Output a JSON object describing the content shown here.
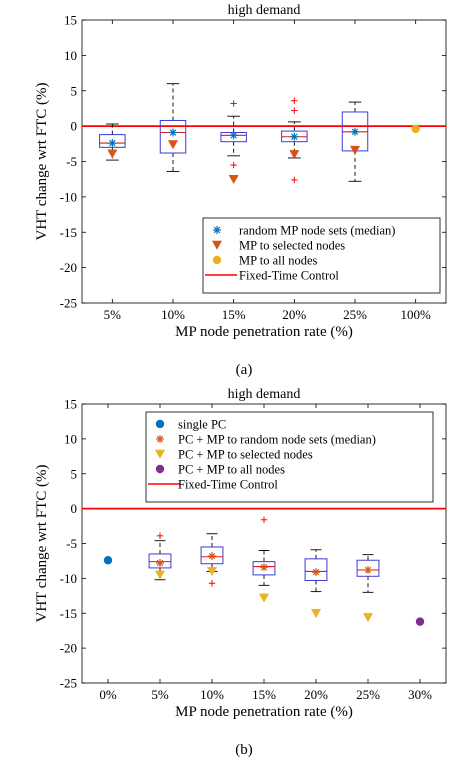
{
  "chart_data": [
    {
      "type": "box",
      "title": "high demand",
      "xlabel": "MP node penetration rate (%)",
      "ylabel": "VHT change wrt FTC (%)",
      "caption": "(a)",
      "ylim": [
        -25,
        15
      ],
      "yticks": [
        15,
        10,
        5,
        0,
        -5,
        -10,
        -15,
        -20,
        -25
      ],
      "categories": [
        "5%",
        "10%",
        "15%",
        "20%",
        "25%",
        "100%"
      ],
      "grid": false,
      "legend_position": "bottom-right",
      "reference_line": {
        "name": "Fixed-Time Control",
        "value": 0,
        "color": "#ff0000"
      },
      "boxes": [
        {
          "category": "5%",
          "min": -4.8,
          "q1": -3.0,
          "median": -2.4,
          "q3": -1.2,
          "max": 0.3,
          "outliers": []
        },
        {
          "category": "10%",
          "min": -6.4,
          "q1": -3.8,
          "median": -0.9,
          "q3": 0.8,
          "max": 6.0,
          "outliers": []
        },
        {
          "category": "15%",
          "min": -4.2,
          "q1": -2.2,
          "median": -1.3,
          "q3": -0.9,
          "max": 1.4,
          "outliers": [
            3.2,
            -5.5
          ]
        },
        {
          "category": "20%",
          "min": -4.5,
          "q1": -2.2,
          "median": -1.5,
          "q3": -0.7,
          "max": 0.6,
          "outliers": [
            3.6,
            2.2,
            -7.6
          ]
        },
        {
          "category": "25%",
          "min": -7.8,
          "q1": -3.5,
          "median": -0.8,
          "q3": 2.0,
          "max": 3.4,
          "outliers": []
        }
      ],
      "series": [
        {
          "name": "random MP node sets (median)",
          "marker": "asterisk",
          "color": "#0072bd",
          "points": [
            {
              "x": "5%",
              "y": -2.4
            },
            {
              "x": "10%",
              "y": -0.9
            },
            {
              "x": "15%",
              "y": -1.3
            },
            {
              "x": "20%",
              "y": -1.5
            },
            {
              "x": "25%",
              "y": -0.8
            }
          ]
        },
        {
          "name": "MP to selected nodes",
          "marker": "triangle-down",
          "color": "#d95319",
          "points": [
            {
              "x": "5%",
              "y": -3.9
            },
            {
              "x": "10%",
              "y": -2.6
            },
            {
              "x": "15%",
              "y": -7.5
            },
            {
              "x": "20%",
              "y": -4.0
            },
            {
              "x": "25%",
              "y": -3.4
            }
          ]
        },
        {
          "name": "MP to all nodes",
          "marker": "circle",
          "color": "#edb120",
          "points": [
            {
              "x": "100%",
              "y": -0.4
            }
          ]
        }
      ],
      "legend": [
        {
          "label": "random MP node sets (median)",
          "marker": "asterisk",
          "color": "#0072bd"
        },
        {
          "label": "MP to selected nodes",
          "marker": "triangle-down",
          "color": "#d95319"
        },
        {
          "label": "MP to all nodes",
          "marker": "circle",
          "color": "#edb120"
        },
        {
          "label": "Fixed-Time Control",
          "marker": "line",
          "color": "#ff0000"
        }
      ]
    },
    {
      "type": "box",
      "title": "high demand",
      "xlabel": "MP node penetration rate (%)",
      "ylabel": "VHT change wrt FTC (%)",
      "caption": "(b)",
      "ylim": [
        -25,
        15
      ],
      "yticks": [
        15,
        10,
        5,
        0,
        -5,
        -10,
        -15,
        -20,
        -25
      ],
      "categories": [
        "0%",
        "5%",
        "10%",
        "15%",
        "20%",
        "25%",
        "30%"
      ],
      "grid": false,
      "legend_position": "top-right",
      "reference_line": {
        "name": "Fixed-Time Control",
        "value": 0,
        "color": "#ff0000"
      },
      "boxes": [
        {
          "category": "5%",
          "min": -10.2,
          "q1": -8.5,
          "median": -7.6,
          "q3": -6.5,
          "max": -4.6,
          "outliers": [
            -3.9
          ]
        },
        {
          "category": "10%",
          "min": -9.0,
          "q1": -7.9,
          "median": -6.9,
          "q3": -5.5,
          "max": -3.6,
          "outliers": [
            -10.7
          ]
        },
        {
          "category": "15%",
          "min": -11.0,
          "q1": -9.5,
          "median": -8.3,
          "q3": -7.6,
          "max": -6.0,
          "outliers": [
            -1.6
          ]
        },
        {
          "category": "20%",
          "min": -11.9,
          "q1": -10.3,
          "median": -9.0,
          "q3": -7.2,
          "max": -5.9,
          "outliers": []
        },
        {
          "category": "25%",
          "min": -12.0,
          "q1": -9.7,
          "median": -8.8,
          "q3": -7.4,
          "max": -6.6,
          "outliers": []
        }
      ],
      "series": [
        {
          "name": "single PC",
          "marker": "circle",
          "color": "#0072bd",
          "points": [
            {
              "x": "0%",
              "y": -7.4
            }
          ]
        },
        {
          "name": "PC + MP to random node sets (median)",
          "marker": "asterisk",
          "color": "#d95319",
          "points": [
            {
              "x": "5%",
              "y": -7.8
            },
            {
              "x": "10%",
              "y": -6.8
            },
            {
              "x": "15%",
              "y": -8.4
            },
            {
              "x": "20%",
              "y": -9.1
            },
            {
              "x": "25%",
              "y": -8.8
            }
          ]
        },
        {
          "name": "PC + MP to selected nodes",
          "marker": "triangle-down",
          "color": "#edb120",
          "points": [
            {
              "x": "5%",
              "y": -9.5
            },
            {
              "x": "10%",
              "y": -9.0
            },
            {
              "x": "15%",
              "y": -12.8
            },
            {
              "x": "20%",
              "y": -15.0
            },
            {
              "x": "25%",
              "y": -15.6
            }
          ]
        },
        {
          "name": "PC + MP to all nodes",
          "marker": "circle",
          "color": "#7e2f8e",
          "points": [
            {
              "x": "30%",
              "y": -16.2
            }
          ]
        }
      ],
      "legend": [
        {
          "label": "single PC",
          "marker": "circle",
          "color": "#0072bd"
        },
        {
          "label": "PC + MP to random node sets (median)",
          "marker": "asterisk",
          "color": "#d95319"
        },
        {
          "label": "PC + MP to selected nodes",
          "marker": "triangle-down",
          "color": "#edb120"
        },
        {
          "label": "PC + MP to all nodes",
          "marker": "circle",
          "color": "#7e2f8e"
        },
        {
          "label": "Fixed-Time Control",
          "marker": "line",
          "color": "#ff0000"
        }
      ]
    }
  ]
}
